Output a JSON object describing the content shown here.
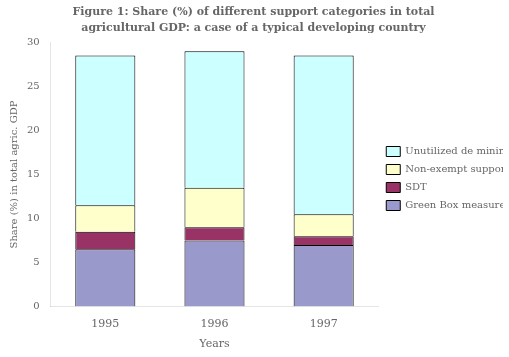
{
  "chart_data": {
    "type": "bar",
    "title": "Figure 1: Share (%) of different support categories in total",
    "subtitle": "agricultural GDP: a case of a typical developing country",
    "categories": [
      "1995",
      "1996",
      "1997"
    ],
    "series": [
      {
        "name": "Green Box measures",
        "color": "#9999cc",
        "values": [
          6.5,
          7.5,
          7.0
        ]
      },
      {
        "name": "SDT",
        "color": "#993366",
        "values": [
          2.0,
          1.5,
          1.0
        ]
      },
      {
        "name": "Non-exempt support",
        "color": "#ffffcc",
        "values": [
          3.0,
          4.5,
          2.5
        ]
      },
      {
        "name": "Unutilized de minimis",
        "color": "#ccffff",
        "values": [
          17.0,
          15.5,
          18.0
        ]
      }
    ],
    "x_label": "Years",
    "y_label": "Share (%) in total agric. GDP",
    "ylim": [
      0,
      30
    ],
    "yticks": [
      0,
      5,
      10,
      15,
      20,
      25,
      30
    ],
    "stacked": true,
    "grid": false,
    "legend": "right"
  }
}
